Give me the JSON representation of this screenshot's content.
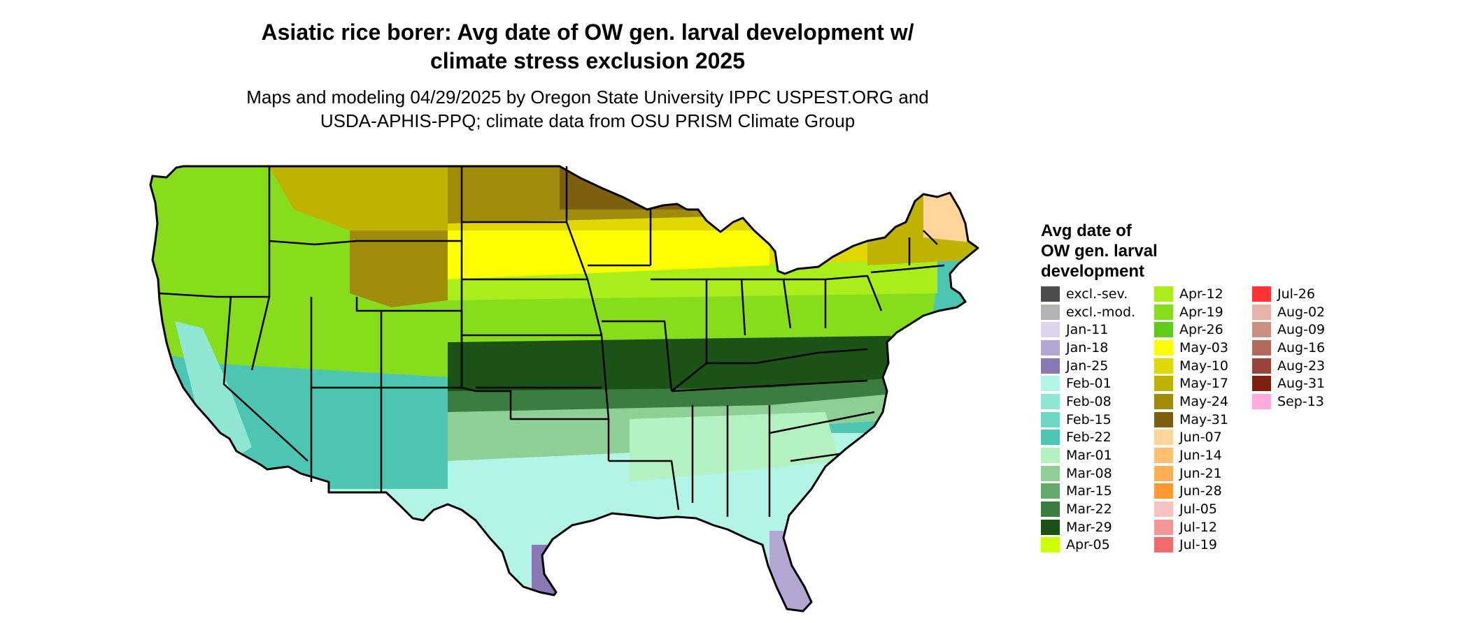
{
  "title": "Asiatic rice borer: Avg date of OW gen. larval development w/\nclimate stress exclusion 2025",
  "subtitle": "Maps and modeling 04/29/2025 by Oregon State University IPPC USPEST.ORG and\nUSDA-APHIS-PPQ; climate data from OSU PRISM Climate Group",
  "legend": {
    "title": "Avg date of\nOW gen. larval\ndevelopment",
    "columns": [
      [
        {
          "label": "excl.-sev.",
          "color": "#4d4d4d"
        },
        {
          "label": "excl.-mod.",
          "color": "#b3b3b3"
        },
        {
          "label": "Jan-11",
          "color": "#dcd5ec"
        },
        {
          "label": "Jan-18",
          "color": "#b3a6d3"
        },
        {
          "label": "Jan-25",
          "color": "#8a78b5"
        },
        {
          "label": "Feb-01",
          "color": "#b2f5e6"
        },
        {
          "label": "Feb-08",
          "color": "#8ee6d3"
        },
        {
          "label": "Feb-15",
          "color": "#6dd8c4"
        },
        {
          "label": "Feb-22",
          "color": "#4cc5b2"
        },
        {
          "label": "Mar-01",
          "color": "#b4f1c1"
        },
        {
          "label": "Mar-08",
          "color": "#8fce95"
        },
        {
          "label": "Mar-15",
          "color": "#64a968"
        },
        {
          "label": "Mar-22",
          "color": "#3b7d40"
        },
        {
          "label": "Mar-29",
          "color": "#1b5316"
        },
        {
          "label": "Apr-05",
          "color": "#ccff00"
        }
      ],
      [
        {
          "label": "Apr-12",
          "color": "#a9ee1a"
        },
        {
          "label": "Apr-19",
          "color": "#87dd1c"
        },
        {
          "label": "Apr-26",
          "color": "#5fcc1a"
        },
        {
          "label": "May-03",
          "color": "#ffff00"
        },
        {
          "label": "May-10",
          "color": "#e0d800"
        },
        {
          "label": "May-17",
          "color": "#c0b200"
        },
        {
          "label": "May-24",
          "color": "#a08c0a"
        },
        {
          "label": "May-31",
          "color": "#7d5f0f"
        },
        {
          "label": "Jun-07",
          "color": "#ffd699"
        },
        {
          "label": "Jun-14",
          "color": "#ffc170"
        },
        {
          "label": "Jun-21",
          "color": "#ffae55"
        },
        {
          "label": "Jun-28",
          "color": "#ff9a33"
        },
        {
          "label": "Jul-05",
          "color": "#f5c3c3"
        },
        {
          "label": "Jul-12",
          "color": "#f29696"
        },
        {
          "label": "Jul-19",
          "color": "#f26a6a"
        }
      ],
      [
        {
          "label": "Jul-26",
          "color": "#ff3333"
        },
        {
          "label": "Aug-02",
          "color": "#e6b3a6"
        },
        {
          "label": "Aug-09",
          "color": "#cc8f80"
        },
        {
          "label": "Aug-16",
          "color": "#b36a5a"
        },
        {
          "label": "Aug-23",
          "color": "#99443a"
        },
        {
          "label": "Aug-31",
          "color": "#802010"
        },
        {
          "label": "Sep-13",
          "color": "#ffaadd"
        }
      ]
    ]
  }
}
